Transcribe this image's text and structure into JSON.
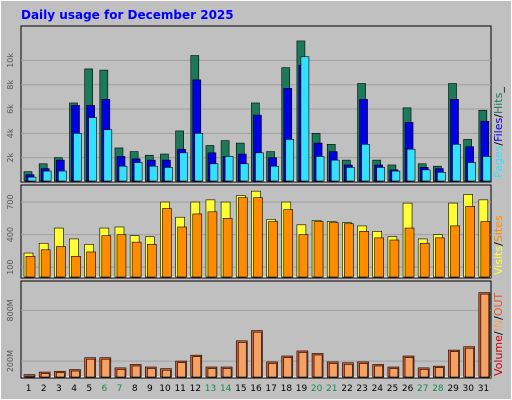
{
  "title": "Daily usage for December 2025",
  "colors": {
    "background": "#c0c0c0",
    "title": "#0000ff",
    "hits": "#1a7a5a",
    "files": "#0000e0",
    "pages": "#33e0ff",
    "visits": "#ffff33",
    "sites": "#ff8c00",
    "volume": "#e05b2a",
    "volume_out": "#f4a264",
    "weekend_label": "#168a4a",
    "volume_label": "#cc0000"
  },
  "chart_data": [
    {
      "type": "bar",
      "panel": "top",
      "categories": [
        "1",
        "2",
        "3",
        "4",
        "5",
        "6",
        "7",
        "8",
        "9",
        "10",
        "11",
        "12",
        "13",
        "14",
        "15",
        "16",
        "17",
        "18",
        "19",
        "20",
        "21",
        "22",
        "23",
        "24",
        "25",
        "26",
        "27",
        "28",
        "29",
        "30",
        "31"
      ],
      "weekend_days": [
        "6",
        "7",
        "13",
        "14",
        "20",
        "21",
        "27",
        "28"
      ],
      "ylim": [
        0,
        12500
      ],
      "ytick_values": [
        2000,
        4000,
        6000,
        8000,
        10000
      ],
      "ytick_labels": [
        "2k",
        "4k",
        "6k",
        "8k",
        "10k"
      ],
      "legend": [
        {
          "text": "Pages",
          "color": "#33e0ff"
        },
        {
          "text": "Files",
          "color": "#0000e0"
        },
        {
          "text": "Hits",
          "color": "#1a7a5a"
        }
      ],
      "separators": [
        "/",
        "/",
        "_"
      ],
      "series": [
        {
          "name": "Hits",
          "values": [
            850,
            1500,
            2000,
            6500,
            9300,
            9200,
            2800,
            2500,
            2200,
            2300,
            4200,
            10400,
            3000,
            3400,
            3200,
            6500,
            2500,
            9400,
            11600,
            4000,
            3100,
            1800,
            8100,
            1800,
            1400,
            6100,
            1500,
            1300,
            8100,
            3500,
            5900
          ]
        },
        {
          "name": "Files",
          "values": [
            600,
            1100,
            1800,
            6300,
            6300,
            6800,
            2100,
            1900,
            1800,
            1800,
            2700,
            8400,
            2400,
            2100,
            2300,
            5500,
            2000,
            7700,
            9600,
            3200,
            2500,
            1400,
            6800,
            1400,
            1000,
            4900,
            1200,
            1100,
            6800,
            2900,
            5000
          ]
        },
        {
          "name": "Pages",
          "values": [
            400,
            900,
            900,
            4000,
            5300,
            4300,
            1300,
            1600,
            1300,
            1200,
            2400,
            4000,
            1500,
            2100,
            1500,
            2400,
            1300,
            3500,
            10300,
            2100,
            1800,
            1200,
            3100,
            1200,
            900,
            2700,
            1000,
            800,
            3100,
            1600,
            2100
          ]
        }
      ]
    },
    {
      "type": "bar",
      "panel": "middle",
      "categories": [
        "1",
        "2",
        "3",
        "4",
        "5",
        "6",
        "7",
        "8",
        "9",
        "10",
        "11",
        "12",
        "13",
        "14",
        "15",
        "16",
        "17",
        "18",
        "19",
        "20",
        "21",
        "22",
        "23",
        "24",
        "25",
        "26",
        "27",
        "28",
        "29",
        "30",
        "31"
      ],
      "ylim": [
        0,
        820
      ],
      "ytick_values": [
        100,
        400,
        700
      ],
      "ytick_labels": [
        "100",
        "400",
        "700"
      ],
      "legend": [
        {
          "text": "Visits",
          "color": "#ffff33"
        },
        {
          "text": "Sites",
          "color": "#ff8c00"
        }
      ],
      "separators": [
        "/"
      ],
      "series": [
        {
          "name": "Visits",
          "values": [
            230,
            320,
            460,
            360,
            310,
            460,
            470,
            390,
            380,
            700,
            560,
            700,
            720,
            700,
            760,
            800,
            540,
            700,
            490,
            530,
            520,
            510,
            480,
            430,
            380,
            690,
            360,
            400,
            690,
            770,
            720
          ]
        },
        {
          "name": "Sites",
          "values": [
            200,
            260,
            290,
            200,
            240,
            390,
            400,
            330,
            310,
            640,
            470,
            590,
            610,
            550,
            740,
            740,
            520,
            630,
            400,
            520,
            510,
            500,
            430,
            370,
            350,
            460,
            320,
            370,
            480,
            660,
            520
          ]
        }
      ]
    },
    {
      "type": "bar",
      "panel": "bottom",
      "categories": [
        "1",
        "2",
        "3",
        "4",
        "5",
        "6",
        "7",
        "8",
        "9",
        "10",
        "11",
        "12",
        "13",
        "14",
        "15",
        "16",
        "17",
        "18",
        "19",
        "20",
        "21",
        "22",
        "23",
        "24",
        "25",
        "26",
        "27",
        "28",
        "29",
        "30",
        "31"
      ],
      "ylim": [
        0,
        1100
      ],
      "ytick_values": [
        200,
        800
      ],
      "ytick_labels": [
        "200M",
        "800M"
      ],
      "legend": [
        {
          "text": "Volume",
          "color": "#cc0000"
        },
        {
          "text": "IN",
          "color": "#f4a264"
        },
        {
          "text": "OUT",
          "color": "#e05b2a"
        }
      ],
      "separators": [
        "/",
        "/"
      ],
      "series": [
        {
          "name": "Volume",
          "values": [
            40,
            70,
            80,
            100,
            240,
            240,
            120,
            160,
            130,
            110,
            200,
            270,
            130,
            130,
            440,
            560,
            190,
            260,
            320,
            290,
            190,
            180,
            190,
            160,
            130,
            260,
            120,
            140,
            330,
            370,
            1010
          ]
        }
      ]
    }
  ]
}
